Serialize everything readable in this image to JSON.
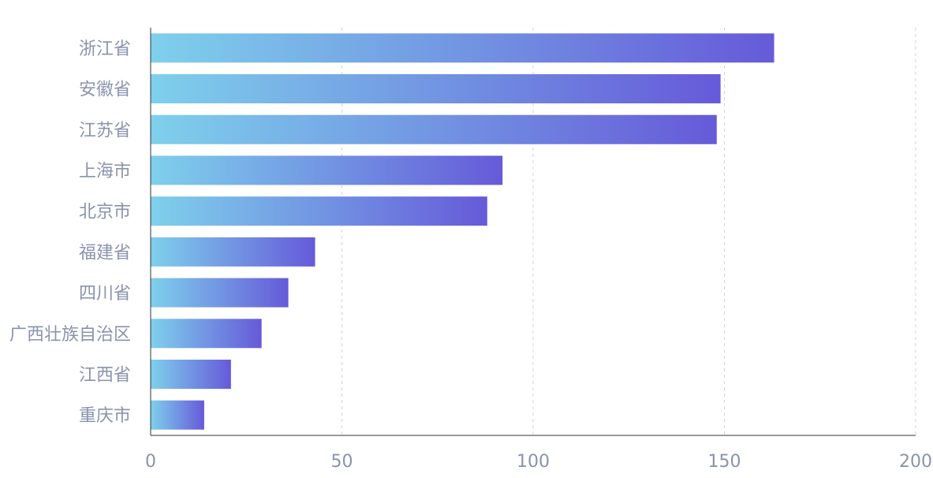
{
  "chart_data": {
    "type": "bar",
    "orientation": "horizontal",
    "title": "",
    "xlabel": "",
    "ylabel": "",
    "categories": [
      "浙江省",
      "安徽省",
      "江苏省",
      "上海市",
      "北京市",
      "福建省",
      "四川省",
      "广西壮族自治区",
      "江西省",
      "重庆市"
    ],
    "values": [
      163,
      149,
      148,
      92,
      88,
      43,
      36,
      29,
      21,
      14
    ],
    "xlim": [
      0,
      200
    ],
    "xticks": [
      0,
      50,
      100,
      150,
      200
    ],
    "grid": {
      "vertical": true,
      "style": "dashed"
    },
    "colors": {
      "bar_gradient_start": "#7ed0ec",
      "bar_gradient_end": "#665ad9",
      "axis": "#333333",
      "grid": "#d0d3da",
      "label": "#8a93ad"
    }
  }
}
